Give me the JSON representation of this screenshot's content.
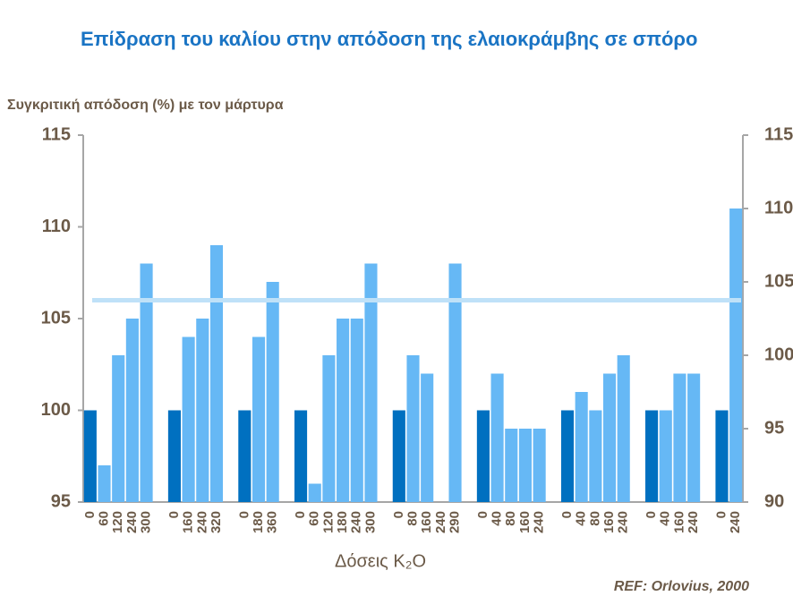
{
  "chart_data": {
    "type": "bar",
    "title": "Επίδραση του καλίου στην απόδοση της ελαιοκράμβης σε σπόρο",
    "y_label": "Συγκριτική απόδοση (%) με τον μάρτυρα",
    "x_label": "Δόσεις K₂O",
    "source": "REF: Orlovius, 2000",
    "categories": [
      "0",
      "60",
      "120",
      "240",
      "300",
      null,
      "0",
      "160",
      "240",
      "320",
      null,
      "0",
      "180",
      "360",
      null,
      "0",
      "60",
      "120",
      "180",
      "240",
      "300",
      null,
      "0",
      "80",
      "160",
      "240",
      "290",
      null,
      "0",
      "40",
      "80",
      "160",
      "240",
      null,
      "0",
      "40",
      "80",
      "160",
      "240",
      null,
      "0",
      "40",
      "160",
      "240",
      null,
      "0",
      "240"
    ],
    "values": [
      100,
      97,
      103,
      105,
      108,
      null,
      100,
      104,
      105,
      109,
      null,
      100,
      104,
      107,
      null,
      100,
      96,
      103,
      105,
      105,
      108,
      null,
      100,
      103,
      102,
      null,
      108,
      null,
      100,
      102,
      99,
      99,
      99,
      null,
      100,
      101,
      100,
      102,
      103,
      null,
      100,
      100,
      102,
      102,
      null,
      100,
      111
    ],
    "colors": [
      "#0070c0",
      "#66b8f5",
      "#66b8f5",
      "#66b8f5",
      "#66b8f5",
      null,
      "#0070c0",
      "#66b8f5",
      "#66b8f5",
      "#66b8f5",
      null,
      "#0070c0",
      "#66b8f5",
      "#66b8f5",
      null,
      "#0070c0",
      "#66b8f5",
      "#66b8f5",
      "#66b8f5",
      "#66b8f5",
      "#66b8f5",
      null,
      "#0070c0",
      "#66b8f5",
      "#66b8f5",
      null,
      "#66b8f5",
      null,
      "#0070c0",
      "#66b8f5",
      "#66b8f5",
      "#66b8f5",
      "#66b8f5",
      null,
      "#0070c0",
      "#66b8f5",
      "#66b8f5",
      "#66b8f5",
      "#66b8f5",
      null,
      "#0070c0",
      "#66b8f5",
      "#66b8f5",
      "#66b8f5",
      null,
      "#0070c0",
      "#66b8f5"
    ],
    "reference_line": 106,
    "reference_color": "#bfe1f8",
    "ylim": [
      95,
      115
    ],
    "yticks": [
      95,
      100,
      105,
      110,
      115
    ],
    "y2lim": [
      90,
      115
    ],
    "y2ticks": [
      90,
      95,
      100,
      105,
      110,
      115
    ]
  }
}
